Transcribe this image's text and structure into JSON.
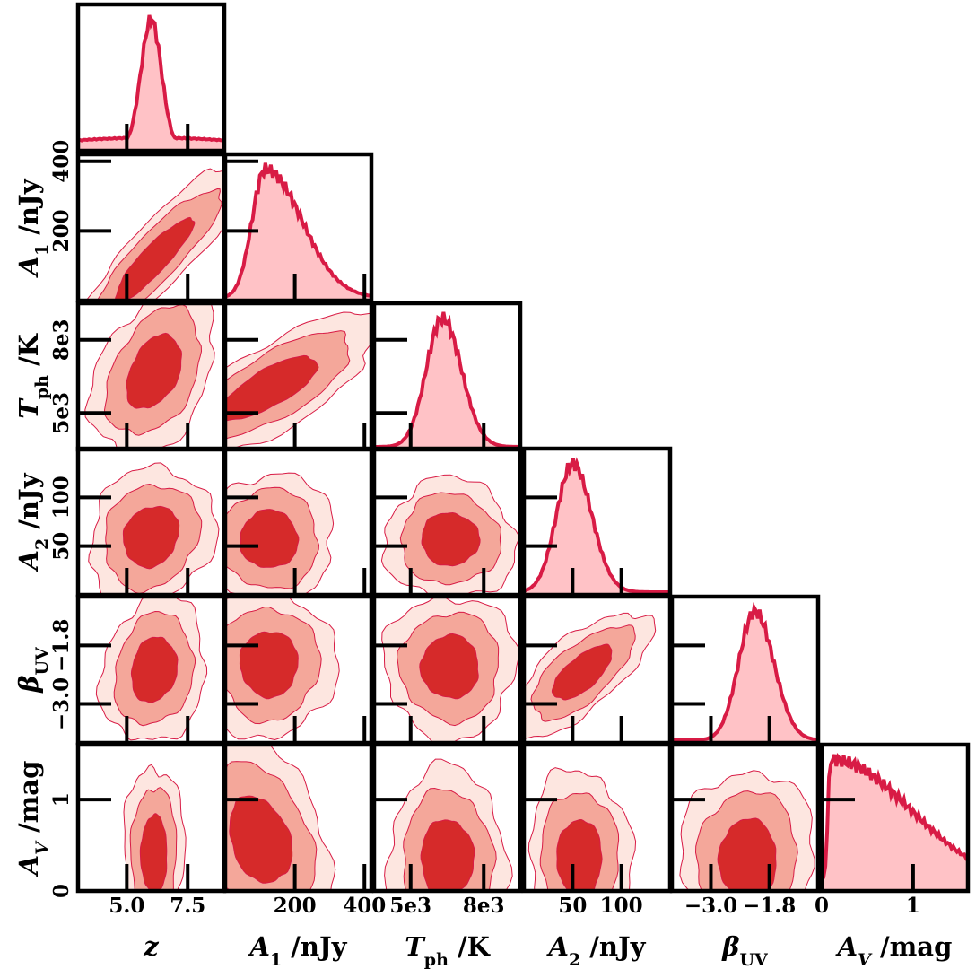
{
  "chart_data": {
    "type": "corner",
    "colors": {
      "fill_1sigma": "#d62a2a",
      "fill_2sigma": "#f4a79a",
      "fill_3sigma": "#fde6e0",
      "line": "#d81b45",
      "hist_fill": "#ffc2c6",
      "frame": "#000000"
    },
    "parameters": [
      {
        "name": "z",
        "label_html": "<tspan font-style='italic'>z</tspan>",
        "range": [
          3.0,
          9.0
        ],
        "ticks": [
          5.0,
          7.5
        ],
        "tick_labels": [
          "5.0",
          "7.5"
        ],
        "mode": 6.0,
        "hist_sigma": 0.55,
        "y_row_ticks": []
      },
      {
        "name": "A1",
        "label_html": "<tspan font-style='italic'>A</tspan><tspan font-size='19' baseline-shift='sub'>1</tspan> /nJy",
        "range": [
          0,
          420
        ],
        "ticks": [
          200,
          400
        ],
        "tick_labels": [
          "200",
          "400"
        ],
        "mode": 115,
        "y_tick_labels": [
          "200",
          "400"
        ]
      },
      {
        "name": "Tph",
        "label_html": "<tspan font-style='italic'>T</tspan><tspan font-size='19' baseline-shift='sub'>ph</tspan> /K",
        "range": [
          3500,
          9500
        ],
        "ticks": [
          5000,
          8000
        ],
        "tick_labels": [
          "5e3",
          "8e3"
        ],
        "mode": 6300,
        "y_tick_labels": [
          "5e3",
          "8e3"
        ]
      },
      {
        "name": "A2",
        "label_html": "<tspan font-style='italic'>A</tspan><tspan font-size='19' baseline-shift='sub'>2</tspan> /nJy",
        "range": [
          0,
          150
        ],
        "ticks": [
          50,
          100
        ],
        "tick_labels": [
          "50",
          "100"
        ],
        "mode": 50,
        "y_tick_labels": [
          "50",
          "100"
        ]
      },
      {
        "name": "betaUV",
        "label_html": "<tspan font-style='italic'>β</tspan><tspan font-size='19' baseline-shift='sub'>UV</tspan>",
        "range": [
          -3.8,
          -0.8
        ],
        "ticks": [
          -3.0,
          -1.8
        ],
        "tick_labels": [
          "−3.0",
          "−1.8"
        ],
        "mode": -2.1,
        "y_tick_labels": [
          "−3.0",
          "−1.8"
        ]
      },
      {
        "name": "AV",
        "label_html": "<tspan font-style='italic'>A</tspan><tspan font-size='19' font-style='italic' baseline-shift='sub'>V</tspan> /mag",
        "range": [
          0,
          1.6
        ],
        "ticks": [
          0,
          1
        ],
        "tick_labels": [
          "0",
          "1"
        ],
        "mode": 0.1,
        "y_tick_labels": [
          "0",
          "1"
        ]
      }
    ],
    "xlabels": [
      "z",
      "A_1 /nJy",
      "T_ph /K",
      "A_2 /nJy",
      "β_UV",
      "A_V /mag"
    ],
    "ylabels": [
      "A_1 /nJy",
      "T_ph /K",
      "A_2 /nJy",
      "β_UV",
      "A_V /mag"
    ],
    "contour_levels": [
      "1σ",
      "2σ",
      "3σ"
    ],
    "grid": false,
    "legend": "none"
  }
}
